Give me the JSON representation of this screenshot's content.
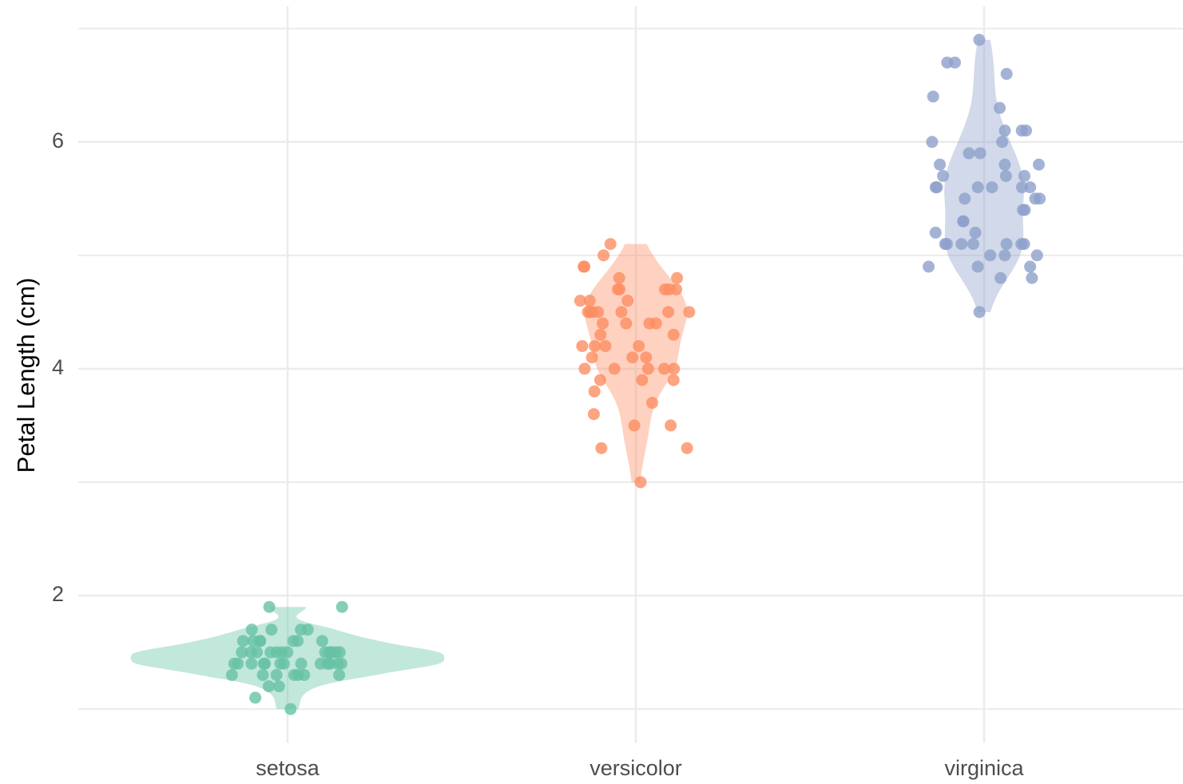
{
  "chart_data": {
    "type": "violin",
    "y_label": "Petal Length (cm)",
    "categories": [
      "setosa",
      "versicolor",
      "virginica"
    ],
    "series": [
      {
        "color": "#66c2a5",
        "values": [
          1.4,
          1.4,
          1.3,
          1.5,
          1.4,
          1.7,
          1.4,
          1.5,
          1.4,
          1.5,
          1.5,
          1.6,
          1.4,
          1.1,
          1.2,
          1.5,
          1.3,
          1.4,
          1.7,
          1.5,
          1.7,
          1.5,
          1.0,
          1.7,
          1.9,
          1.6,
          1.6,
          1.5,
          1.4,
          1.6,
          1.6,
          1.5,
          1.5,
          1.4,
          1.5,
          1.2,
          1.3,
          1.4,
          1.3,
          1.5,
          1.3,
          1.3,
          1.3,
          1.6,
          1.9,
          1.4,
          1.6,
          1.4,
          1.5,
          1.4
        ]
      },
      {
        "color": "#fc8d62",
        "values": [
          4.7,
          4.5,
          4.9,
          4.0,
          4.6,
          4.5,
          4.7,
          3.3,
          4.6,
          3.9,
          3.5,
          4.2,
          4.0,
          4.7,
          3.6,
          4.4,
          4.5,
          4.1,
          4.5,
          3.9,
          4.8,
          4.0,
          4.9,
          4.7,
          4.3,
          4.4,
          4.8,
          5.0,
          4.5,
          3.5,
          3.8,
          3.7,
          3.9,
          5.1,
          4.5,
          4.5,
          4.7,
          4.4,
          4.1,
          4.0,
          4.4,
          4.6,
          4.0,
          3.3,
          4.2,
          4.2,
          4.2,
          4.3,
          3.0,
          4.1
        ]
      },
      {
        "color": "#8da0cb",
        "values": [
          6.0,
          5.1,
          5.9,
          5.6,
          5.8,
          6.6,
          4.5,
          6.3,
          5.8,
          6.1,
          5.1,
          5.3,
          5.5,
          5.0,
          5.1,
          5.3,
          5.5,
          6.7,
          6.9,
          5.0,
          5.7,
          4.9,
          6.7,
          4.9,
          5.7,
          6.0,
          4.8,
          4.9,
          5.6,
          5.8,
          6.1,
          6.4,
          5.6,
          5.1,
          5.6,
          6.1,
          5.6,
          5.5,
          4.8,
          5.4,
          5.6,
          5.1,
          5.1,
          5.9,
          5.7,
          5.2,
          5.0,
          5.2,
          5.4,
          5.1
        ]
      }
    ],
    "ylim": [
      0.705,
      7.195
    ],
    "yticks": [
      2,
      4,
      6
    ],
    "yminorticks": [
      1,
      3,
      5,
      7
    ],
    "grid": true
  }
}
